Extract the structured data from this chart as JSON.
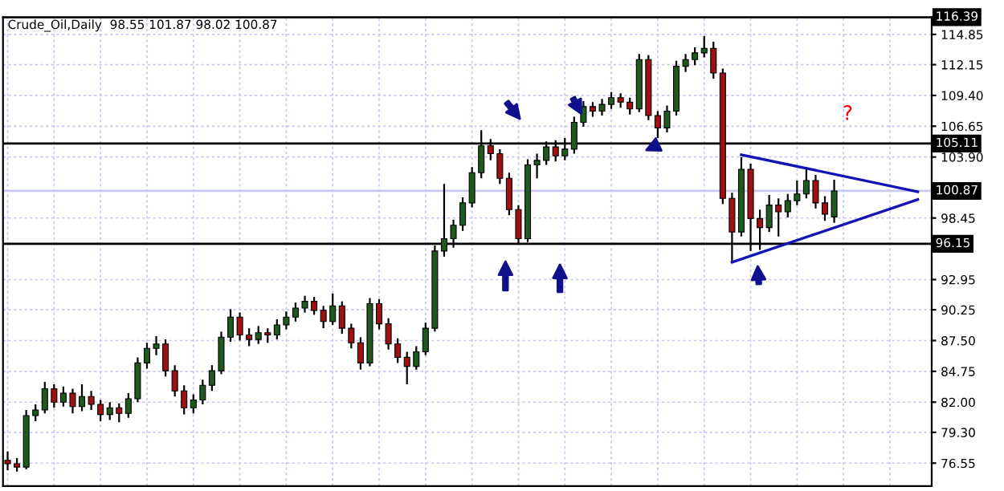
{
  "chart_data": {
    "type": "candlestick",
    "title": "Crude_Oil,Daily  98.55 101.87 98.02 100.87",
    "categories": [
      null,
      null,
      null,
      null,
      null,
      null,
      null,
      null,
      null,
      null,
      null,
      null,
      null,
      null,
      null,
      null,
      null,
      null,
      null,
      null,
      null,
      null,
      null,
      null,
      null,
      null,
      null,
      null,
      null,
      null,
      null,
      null,
      null,
      null,
      null,
      null,
      null,
      null,
      null,
      null,
      null,
      null,
      null,
      null,
      null,
      null,
      null,
      null,
      null,
      null,
      null,
      null,
      null,
      null,
      null,
      null,
      null,
      null,
      null,
      null,
      null,
      null,
      null,
      null,
      null,
      null,
      null,
      null,
      null,
      null,
      null,
      null,
      null,
      null,
      null,
      null,
      null,
      null,
      null,
      null,
      null,
      null,
      null,
      null,
      null,
      null,
      null,
      null,
      null,
      null,
      null,
      null,
      null,
      null,
      null,
      null,
      null,
      null,
      null,
      null
    ],
    "ohlc": [
      [
        76.8,
        77.6,
        75.9,
        76.5
      ],
      [
        76.5,
        77.0,
        75.8,
        76.2
      ],
      [
        76.2,
        81.3,
        76.0,
        80.8
      ],
      [
        80.8,
        81.8,
        80.3,
        81.3
      ],
      [
        81.3,
        83.8,
        81.0,
        83.2
      ],
      [
        83.2,
        83.6,
        81.5,
        82.0
      ],
      [
        82.0,
        83.4,
        81.6,
        82.8
      ],
      [
        82.8,
        83.2,
        81.0,
        81.6
      ],
      [
        81.6,
        83.6,
        81.2,
        82.5
      ],
      [
        82.5,
        83.0,
        81.3,
        81.8
      ],
      [
        81.8,
        82.2,
        80.3,
        80.9
      ],
      [
        80.9,
        82.0,
        80.4,
        81.5
      ],
      [
        81.5,
        81.9,
        80.2,
        81.0
      ],
      [
        81.0,
        82.8,
        80.6,
        82.3
      ],
      [
        82.3,
        86.0,
        82.0,
        85.5
      ],
      [
        85.5,
        87.3,
        85.0,
        86.8
      ],
      [
        86.8,
        87.9,
        86.2,
        87.2
      ],
      [
        87.2,
        87.6,
        84.3,
        84.8
      ],
      [
        84.8,
        85.3,
        82.5,
        83.0
      ],
      [
        83.0,
        83.5,
        80.9,
        81.5
      ],
      [
        81.5,
        82.7,
        81.0,
        82.2
      ],
      [
        82.2,
        84.0,
        81.8,
        83.5
      ],
      [
        83.5,
        85.3,
        83.0,
        84.8
      ],
      [
        84.8,
        88.3,
        84.5,
        87.8
      ],
      [
        87.8,
        90.3,
        87.4,
        89.6
      ],
      [
        89.6,
        90.0,
        87.5,
        88.0
      ],
      [
        88.0,
        88.6,
        87.0,
        87.6
      ],
      [
        87.6,
        88.8,
        87.2,
        88.2
      ],
      [
        88.2,
        88.6,
        87.3,
        88.0
      ],
      [
        88.0,
        89.4,
        87.6,
        88.9
      ],
      [
        88.9,
        90.1,
        88.5,
        89.6
      ],
      [
        89.6,
        90.9,
        89.2,
        90.4
      ],
      [
        90.4,
        91.5,
        90.0,
        91.0
      ],
      [
        91.0,
        91.4,
        89.8,
        90.2
      ],
      [
        90.2,
        90.6,
        88.6,
        89.2
      ],
      [
        89.2,
        91.7,
        88.9,
        90.6
      ],
      [
        90.6,
        91.0,
        88.1,
        88.6
      ],
      [
        88.6,
        89.0,
        86.8,
        87.3
      ],
      [
        87.3,
        87.8,
        84.9,
        85.5
      ],
      [
        85.5,
        91.3,
        85.2,
        90.8
      ],
      [
        90.8,
        91.2,
        88.5,
        89.0
      ],
      [
        89.0,
        89.5,
        86.7,
        87.2
      ],
      [
        87.2,
        87.7,
        85.5,
        86.0
      ],
      [
        86.0,
        86.5,
        83.6,
        85.2
      ],
      [
        85.2,
        87.0,
        84.9,
        86.5
      ],
      [
        86.5,
        89.1,
        86.2,
        88.6
      ],
      [
        88.6,
        96.0,
        88.3,
        95.5
      ],
      [
        95.5,
        101.5,
        95.0,
        96.6
      ],
      [
        96.6,
        98.3,
        95.8,
        97.8
      ],
      [
        97.8,
        100.3,
        97.3,
        99.8
      ],
      [
        99.8,
        103.0,
        99.4,
        102.5
      ],
      [
        102.5,
        106.3,
        102.0,
        104.9
      ],
      [
        104.9,
        105.5,
        103.6,
        104.2
      ],
      [
        104.2,
        104.6,
        101.5,
        102.0
      ],
      [
        102.0,
        102.5,
        98.7,
        99.2
      ],
      [
        99.2,
        99.6,
        96.2,
        96.6
      ],
      [
        96.6,
        103.7,
        96.3,
        103.2
      ],
      [
        103.2,
        104.2,
        102.0,
        103.6
      ],
      [
        103.6,
        105.3,
        103.2,
        104.8
      ],
      [
        104.8,
        105.4,
        103.5,
        104.0
      ],
      [
        104.0,
        105.6,
        103.6,
        104.6
      ],
      [
        104.6,
        107.5,
        104.2,
        107.0
      ],
      [
        107.0,
        108.9,
        106.6,
        108.4
      ],
      [
        108.4,
        108.8,
        107.5,
        108.0
      ],
      [
        108.0,
        109.1,
        107.6,
        108.6
      ],
      [
        108.6,
        109.7,
        108.2,
        109.2
      ],
      [
        109.2,
        109.6,
        108.3,
        108.8
      ],
      [
        108.8,
        109.2,
        107.7,
        108.2
      ],
      [
        108.2,
        113.1,
        107.9,
        112.6
      ],
      [
        112.6,
        113.0,
        107.2,
        107.6
      ],
      [
        107.6,
        108.0,
        105.6,
        106.5
      ],
      [
        106.5,
        108.5,
        106.1,
        108.0
      ],
      [
        108.0,
        112.5,
        107.6,
        112.0
      ],
      [
        112.0,
        113.1,
        111.5,
        112.6
      ],
      [
        112.6,
        113.7,
        112.1,
        113.2
      ],
      [
        113.2,
        114.7,
        112.8,
        113.6
      ],
      [
        113.6,
        114.2,
        110.9,
        111.4
      ],
      [
        111.4,
        111.8,
        99.7,
        100.2
      ],
      [
        100.2,
        100.7,
        94.6,
        97.2
      ],
      [
        97.2,
        103.9,
        96.8,
        102.8
      ],
      [
        102.8,
        103.3,
        95.5,
        98.4
      ],
      [
        98.4,
        99.2,
        95.6,
        97.6
      ],
      [
        97.6,
        100.5,
        97.2,
        99.6
      ],
      [
        99.6,
        100.2,
        96.8,
        99.0
      ],
      [
        99.0,
        100.6,
        98.5,
        100.0
      ],
      [
        100.0,
        101.8,
        99.6,
        100.6
      ],
      [
        100.6,
        103.0,
        100.2,
        101.8
      ],
      [
        101.8,
        102.3,
        99.3,
        99.8
      ],
      [
        99.8,
        100.4,
        98.2,
        98.8
      ],
      [
        98.55,
        101.87,
        98.02,
        100.87
      ],
      null,
      null,
      null,
      null,
      null,
      null,
      null,
      null,
      null,
      null
    ],
    "colors": [
      "#a01010",
      "#a01010",
      "#1e5a1e",
      "#1e5a1e",
      "#1e5a1e",
      "#a01010",
      "#1e5a1e",
      "#a01010",
      "#1e5a1e",
      "#a01010",
      "#a01010",
      "#1e5a1e",
      "#a01010",
      "#1e5a1e",
      "#1e5a1e",
      "#1e5a1e",
      "#1e5a1e",
      "#a01010",
      "#a01010",
      "#a01010",
      "#1e5a1e",
      "#1e5a1e",
      "#1e5a1e",
      "#1e5a1e",
      "#1e5a1e",
      "#a01010",
      "#a01010",
      "#1e5a1e",
      "#a01010",
      "#1e5a1e",
      "#1e5a1e",
      "#1e5a1e",
      "#1e5a1e",
      "#a01010",
      "#a01010",
      "#1e5a1e",
      "#a01010",
      "#a01010",
      "#a01010",
      "#1e5a1e",
      "#a01010",
      "#a01010",
      "#a01010",
      "#a01010",
      "#1e5a1e",
      "#1e5a1e",
      "#1e5a1e",
      "#1e5a1e",
      "#1e5a1e",
      "#1e5a1e",
      "#1e5a1e",
      "#1e5a1e",
      "#a01010",
      "#a01010",
      "#a01010",
      "#a01010",
      "#1e5a1e",
      "#1e5a1e",
      "#1e5a1e",
      "#a01010",
      "#1e5a1e",
      "#1e5a1e",
      "#1e5a1e",
      "#a01010",
      "#1e5a1e",
      "#1e5a1e",
      "#a01010",
      "#a01010",
      "#1e5a1e",
      "#a01010",
      "#a01010",
      "#1e5a1e",
      "#1e5a1e",
      "#1e5a1e",
      "#1e5a1e",
      "#1e5a1e",
      "#a01010",
      "#a01010",
      "#a01010",
      "#1e5a1e",
      "#a01010",
      "#a01010",
      "#1e5a1e",
      "#a01010",
      "#1e5a1e",
      "#1e5a1e",
      "#1e5a1e",
      "#a01010",
      "#a01010",
      "#1e5a1e",
      null,
      null,
      null,
      null,
      null,
      null,
      null,
      null,
      null,
      null
    ],
    "series": [
      {
        "type": "line",
        "color": "#1414b4",
        "values": [
          null,
          null,
          null,
          null,
          null,
          null,
          null,
          null,
          null,
          null,
          null,
          null,
          null,
          null,
          null,
          null,
          null,
          null,
          null,
          null,
          null,
          null,
          null,
          null,
          null,
          null,
          null,
          null,
          null,
          null,
          null,
          null,
          null,
          null,
          null,
          null,
          null,
          null,
          null,
          null,
          null,
          null,
          null,
          null,
          null,
          null,
          null,
          null,
          null,
          null,
          null,
          null,
          null,
          null,
          null,
          null,
          null,
          null,
          null,
          null,
          null,
          null,
          null,
          null,
          null,
          null,
          null,
          null,
          null,
          null,
          null,
          null,
          null,
          null,
          null,
          null,
          null,
          null,
          null,
          104.1,
          null,
          null,
          null,
          null,
          null,
          null,
          null,
          null,
          null,
          null,
          null,
          null,
          null,
          null,
          null,
          null,
          null,
          null,
          100.8,
          null
        ]
      },
      {
        "type": "line",
        "color": "#1414b4",
        "values": [
          null,
          null,
          null,
          null,
          null,
          null,
          null,
          null,
          null,
          null,
          null,
          null,
          null,
          null,
          null,
          null,
          null,
          null,
          null,
          null,
          null,
          null,
          null,
          null,
          null,
          null,
          null,
          null,
          null,
          null,
          null,
          null,
          null,
          null,
          null,
          null,
          null,
          null,
          null,
          null,
          null,
          null,
          null,
          null,
          null,
          null,
          null,
          null,
          null,
          null,
          null,
          null,
          null,
          null,
          null,
          null,
          null,
          null,
          null,
          null,
          null,
          null,
          null,
          null,
          null,
          null,
          null,
          null,
          null,
          null,
          null,
          null,
          null,
          null,
          null,
          null,
          null,
          null,
          94.5,
          null,
          null,
          null,
          null,
          null,
          null,
          null,
          null,
          null,
          null,
          null,
          null,
          null,
          null,
          null,
          null,
          null,
          null,
          null,
          100.1,
          null
        ]
      }
    ],
    "ylim": [
      74.5,
      116.39
    ],
    "yticks": [
      {
        "value": 114.85,
        "label": "114.85"
      },
      {
        "value": 112.15,
        "label": "112.15"
      },
      {
        "value": 109.4,
        "label": "109.40"
      },
      {
        "value": 106.65,
        "label": "106.65"
      },
      {
        "value": 103.9,
        "label": "103.90"
      },
      {
        "value": 98.45,
        "label": "98.45"
      },
      {
        "value": 92.95,
        "label": "92.95"
      },
      {
        "value": 90.25,
        "label": "90.25"
      },
      {
        "value": 87.5,
        "label": "87.50"
      },
      {
        "value": 84.75,
        "label": "84.75"
      },
      {
        "value": 82.0,
        "label": "82.00"
      },
      {
        "value": 79.3,
        "label": "79.30"
      },
      {
        "value": 76.55,
        "label": "76.55"
      }
    ],
    "ref_lines": [
      {
        "axis": "y",
        "value": 116.39,
        "label": "116.39",
        "color": "#000000"
      },
      {
        "axis": "y",
        "value": 105.11,
        "label": "105.11",
        "color": "#000000"
      },
      {
        "axis": "y",
        "value": 100.87,
        "label": "100.87",
        "color": "#c8c8f0"
      },
      {
        "axis": "y",
        "value": 96.15,
        "label": "96.15",
        "color": "#000000"
      }
    ],
    "annotations": [
      "?"
    ],
    "grid": true,
    "tick_labels": "y"
  }
}
